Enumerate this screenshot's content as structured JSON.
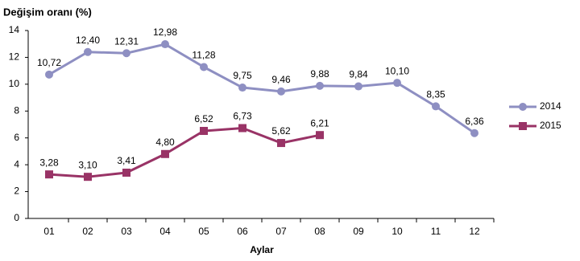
{
  "chart_data": {
    "type": "line",
    "title": "Değişim oranı (%)",
    "x_label": "Aylar",
    "categories": [
      "01",
      "02",
      "03",
      "04",
      "05",
      "06",
      "07",
      "08",
      "09",
      "10",
      "11",
      "12"
    ],
    "series": [
      {
        "name": "2014",
        "color": "#8e8fc2",
        "marker": "circle",
        "values": [
          10.72,
          12.4,
          12.31,
          12.98,
          11.28,
          9.75,
          9.46,
          9.88,
          9.84,
          10.1,
          8.35,
          6.36
        ],
        "value_labels": [
          "10,72",
          "12,40",
          "12,31",
          "12,98",
          "11,28",
          "9,75",
          "9,46",
          "9,88",
          "9,84",
          "10,10",
          "8,35",
          "6,36"
        ]
      },
      {
        "name": "2015",
        "color": "#993366",
        "marker": "square",
        "values": [
          3.28,
          3.1,
          3.41,
          4.8,
          6.52,
          6.73,
          5.62,
          6.21,
          null,
          null,
          null,
          null
        ],
        "value_labels": [
          "3,28",
          "3,10",
          "3,41",
          "4,80",
          "6,52",
          "6,73",
          "5,62",
          "6,21",
          null,
          null,
          null,
          null
        ]
      }
    ],
    "ylim": [
      0,
      14
    ],
    "yticks": [
      0,
      2,
      4,
      6,
      8,
      10,
      12,
      14
    ],
    "legend": "right"
  }
}
